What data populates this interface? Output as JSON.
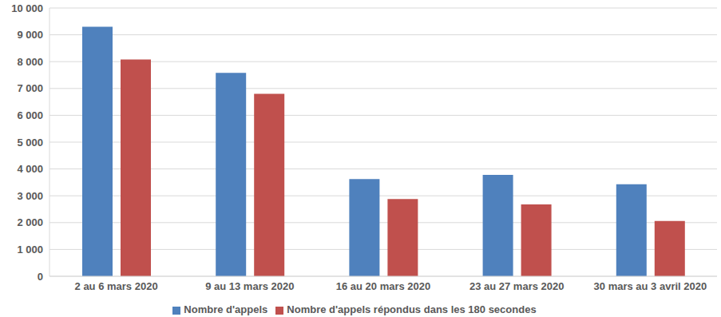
{
  "chart_data": {
    "type": "bar",
    "categories": [
      "2 au 6 mars 2020",
      "9 au 13 mars 2020",
      "16 au 20 mars 2020",
      "23 au 27 mars 2020",
      "30 mars au 3 avril 2020"
    ],
    "series": [
      {
        "name": "Nombre d'appels",
        "color": "#4f81bd",
        "values": [
          9300,
          7580,
          3620,
          3780,
          3430
        ]
      },
      {
        "name": "Nombre d'appels répondus dans les 180 secondes",
        "color": "#c0504d",
        "values": [
          8080,
          6800,
          2880,
          2680,
          2060
        ]
      }
    ],
    "ylim": [
      0,
      10000
    ],
    "yticks": [
      0,
      {
        "value": 1000,
        "label": "1 000"
      },
      {
        "value": 2000,
        "label": "2 000"
      },
      {
        "value": 3000,
        "label": "3 000"
      },
      {
        "value": 4000,
        "label": "4 000"
      },
      {
        "value": 5000,
        "label": "5 000"
      },
      {
        "value": 6000,
        "label": "6 000"
      },
      {
        "value": 7000,
        "label": "7 000"
      },
      {
        "value": 8000,
        "label": "8 000"
      },
      {
        "value": 9000,
        "label": "9 000"
      },
      {
        "value": 10000,
        "label": "10 000"
      }
    ],
    "grid": true,
    "legend": "bottom"
  }
}
